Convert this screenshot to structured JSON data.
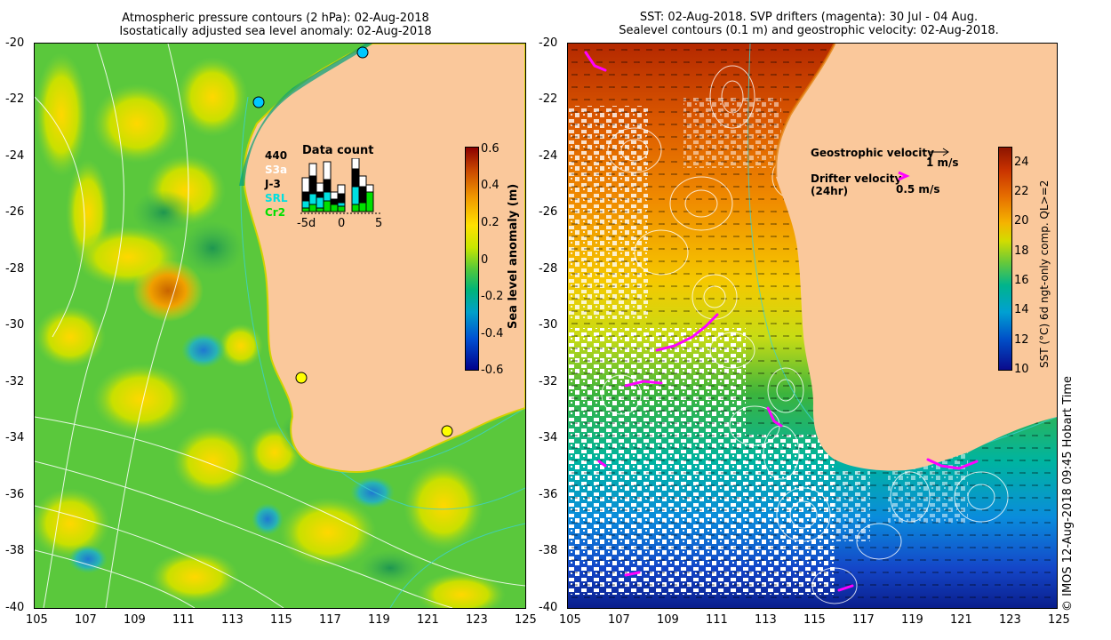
{
  "left_panel": {
    "title_line1": "Atmospheric pressure contours (2 hPa): 02-Aug-2018",
    "title_line2": "Isostatically adjusted sea level anomaly: 02-Aug-2018",
    "x_ticks": [
      "105",
      "107",
      "109",
      "111",
      "113",
      "115",
      "117",
      "119",
      "121",
      "123",
      "125"
    ],
    "y_ticks": [
      "-20",
      "-22",
      "-24",
      "-26",
      "-28",
      "-30",
      "-32",
      "-34",
      "-36",
      "-38",
      "-40"
    ],
    "colorbar": {
      "label": "Sea level anomaly (m)",
      "ticks": [
        "0.6",
        "0.4",
        "0.2",
        "0",
        "-0.2",
        "-0.4",
        "-0.6"
      ],
      "range": [
        -0.6,
        0.6
      ]
    },
    "data_count": {
      "title": "Data count",
      "total": "440",
      "missions": [
        {
          "name": "S3a",
          "color": "#ffffff"
        },
        {
          "name": "J-3",
          "color": "#000000"
        },
        {
          "name": "SRL",
          "color": "#00e0e0"
        },
        {
          "name": "Cr2",
          "color": "#00e000"
        }
      ],
      "axis_ticks": [
        "-5d",
        "0",
        "5"
      ]
    },
    "colors": {
      "land": "#fac89b",
      "ocean": "#5ac83c",
      "tide_gauge_yellow": "#ffff00",
      "tide_gauge_cyan": "#00c8ff"
    }
  },
  "right_panel": {
    "title_line1": "SST: 02-Aug-2018. SVP drifters (magenta): 30 Jul - 04 Aug.",
    "title_line2": "Sealevel contours (0.1 m) and geostrophic velocity: 02-Aug-2018.",
    "x_ticks": [
      "105",
      "107",
      "109",
      "111",
      "113",
      "115",
      "117",
      "119",
      "121",
      "123",
      "125"
    ],
    "y_ticks": [
      "-20",
      "-22",
      "-24",
      "-26",
      "-28",
      "-30",
      "-32",
      "-34",
      "-36",
      "-38",
      "-40"
    ],
    "colorbar": {
      "label": "SST (°C) 6d ngt-only comp. QL>=2",
      "ticks": [
        "24",
        "22",
        "20",
        "18",
        "16",
        "14",
        "12",
        "10"
      ],
      "range": [
        10,
        25
      ]
    },
    "legend": {
      "geo_label": "Geostrophic velocity",
      "geo_scale": "1 m/s",
      "drifter_label_line1": "Drifter velocity",
      "drifter_label_line2": "(24hr)",
      "drifter_scale": "0.5 m/s"
    },
    "credit": "© IMOS 12-Aug-2018 09:45 Hobart Time",
    "colors": {
      "land": "#fac89b",
      "drifter": "#ff00ff",
      "cloud": "#ffffff"
    }
  }
}
